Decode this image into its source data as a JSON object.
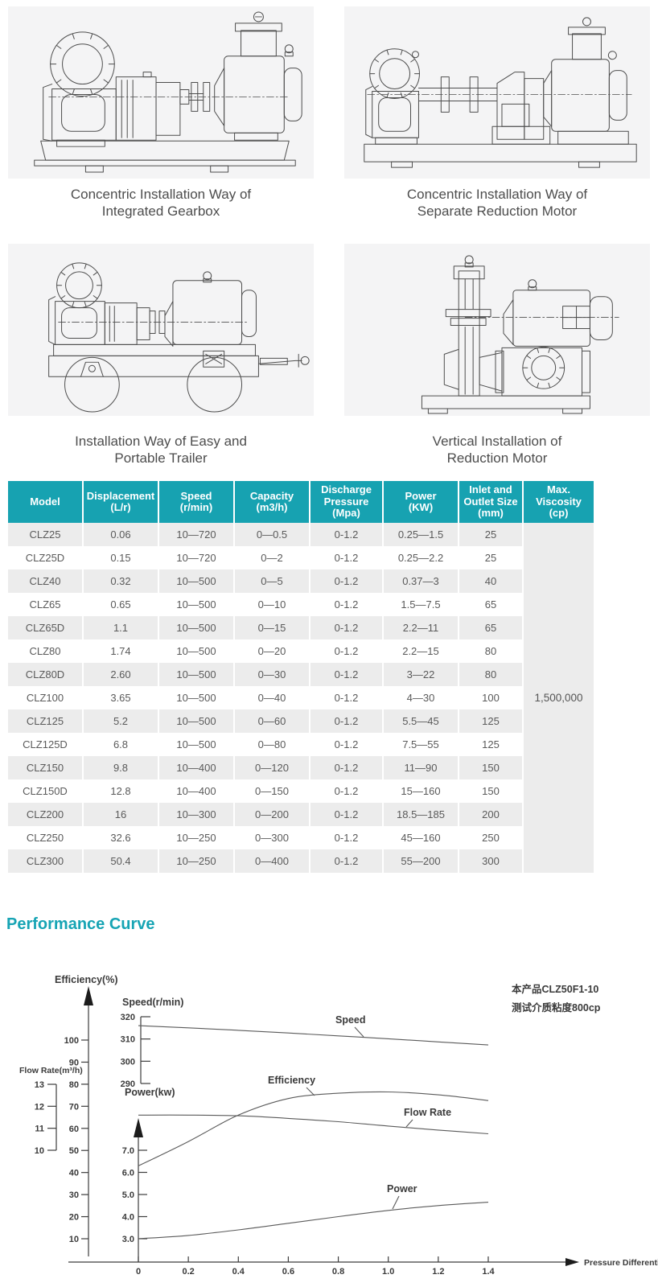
{
  "colors": {
    "accent_teal": "#17a2b1",
    "row_stripe": "#ececec",
    "figure_background": "#f4f4f5",
    "drawing_line": "#4d4d4d"
  },
  "figures": [
    {
      "caption": "Concentric Installation Way of\nIntegrated Gearbox"
    },
    {
      "caption": "Concentric Installation Way of\nSeparate Reduction Motor"
    },
    {
      "caption": "Installation Way of Easy and\nPortable Trailer"
    },
    {
      "caption": "Vertical Installation of\nReduction Motor"
    }
  ],
  "table": {
    "headers": [
      "Model",
      "Displacement\n(L/r)",
      "Speed\n(r/min)",
      "Capacity\n(m3/h)",
      "Discharge\nPressure\n(Mpa)",
      "Power\n(KW)",
      "Inlet and\nOutlet Size\n(mm)",
      "Max. Viscosity\n(cp)"
    ],
    "rows": [
      [
        "CLZ25",
        "0.06",
        "10—720",
        "0—0.5",
        "0-1.2",
        "0.25—1.5",
        "25"
      ],
      [
        "CLZ25D",
        "0.15",
        "10—720",
        "0—2",
        "0-1.2",
        "0.25—2.2",
        "25"
      ],
      [
        "CLZ40",
        "0.32",
        "10—500",
        "0—5",
        "0-1.2",
        "0.37—3",
        "40"
      ],
      [
        "CLZ65",
        "0.65",
        "10—500",
        "0—10",
        "0-1.2",
        "1.5—7.5",
        "65"
      ],
      [
        "CLZ65D",
        "1.1",
        "10—500",
        "0—15",
        "0-1.2",
        "2.2—11",
        "65"
      ],
      [
        "CLZ80",
        "1.74",
        "10—500",
        "0—20",
        "0-1.2",
        "2.2—15",
        "80"
      ],
      [
        "CLZ80D",
        "2.60",
        "10—500",
        "0—30",
        "0-1.2",
        "3—22",
        "80"
      ],
      [
        "CLZ100",
        "3.65",
        "10—500",
        "0—40",
        "0-1.2",
        "4—30",
        "100"
      ],
      [
        "CLZ125",
        "5.2",
        "10—500",
        "0—60",
        "0-1.2",
        "5.5—45",
        "125"
      ],
      [
        "CLZ125D",
        "6.8",
        "10—500",
        "0—80",
        "0-1.2",
        "7.5—55",
        "125"
      ],
      [
        "CLZ150",
        "9.8",
        "10—400",
        "0—120",
        "0-1.2",
        "11—90",
        "150"
      ],
      [
        "CLZ150D",
        "12.8",
        "10—400",
        "0—150",
        "0-1.2",
        "15—160",
        "150"
      ],
      [
        "CLZ200",
        "16",
        "10—300",
        "0—200",
        "0-1.2",
        "18.5—185",
        "200"
      ],
      [
        "CLZ250",
        "32.6",
        "10—250",
        "0—300",
        "0-1.2",
        "45—160",
        "250"
      ],
      [
        "CLZ300",
        "50.4",
        "10—250",
        "0—400",
        "0-1.2",
        "55—200",
        "300"
      ]
    ],
    "merged_last_column_value": "1,500,000"
  },
  "section_title": "Performance Curve",
  "chart_data": {
    "type": "line",
    "x_axis": {
      "label": "Pressure Differential(Mpa)",
      "ticks": [
        "0",
        "0.2",
        "0.4",
        "0.6",
        "0.8",
        "1.0",
        "1.2",
        "1.4"
      ],
      "range": [
        0,
        1.4
      ]
    },
    "axes": {
      "efficiency": {
        "label": "Efficiency(%)",
        "ticks": [
          100,
          90,
          80,
          70,
          60,
          50,
          40,
          30,
          20,
          10
        ],
        "range": [
          10,
          100
        ]
      },
      "speed": {
        "label": "Speed(r/min)",
        "ticks": [
          320,
          310,
          300,
          290
        ],
        "range": [
          290,
          320
        ]
      },
      "flow": {
        "label": "Flow Rate(m³/h)",
        "ticks": [
          13,
          12,
          11,
          10
        ],
        "range": [
          10,
          13
        ]
      },
      "power": {
        "label": "Power(kw)",
        "ticks": [
          "7.0",
          "6.0",
          "5.0",
          "4.0",
          "3.0"
        ],
        "range": [
          3,
          7
        ]
      }
    },
    "x": [
      0,
      0.2,
      0.4,
      0.6,
      0.8,
      1.0,
      1.2,
      1.4
    ],
    "series": [
      {
        "name": "Speed",
        "axis": "speed",
        "values": [
          316,
          315,
          313.9,
          312.7,
          311.4,
          310.1,
          308.7,
          307.3
        ]
      },
      {
        "name": "Efficiency",
        "axis": "efficiency",
        "values": [
          43,
          54,
          66,
          73.5,
          75.9,
          76.5,
          75.2,
          72.6
        ]
      },
      {
        "name": "Flow Rate",
        "axis": "flow",
        "values": [
          11.6,
          11.6,
          11.57,
          11.45,
          11.3,
          11.1,
          10.92,
          10.75
        ]
      },
      {
        "name": "Power",
        "axis": "power",
        "values": [
          3.0,
          3.15,
          3.4,
          3.7,
          4.0,
          4.28,
          4.5,
          4.65
        ]
      }
    ],
    "annotations": [
      "本产品CLZ50F1-10",
      "测试介质粘度800cp"
    ],
    "grid": false,
    "legend_position": "inline-curve-labels"
  }
}
